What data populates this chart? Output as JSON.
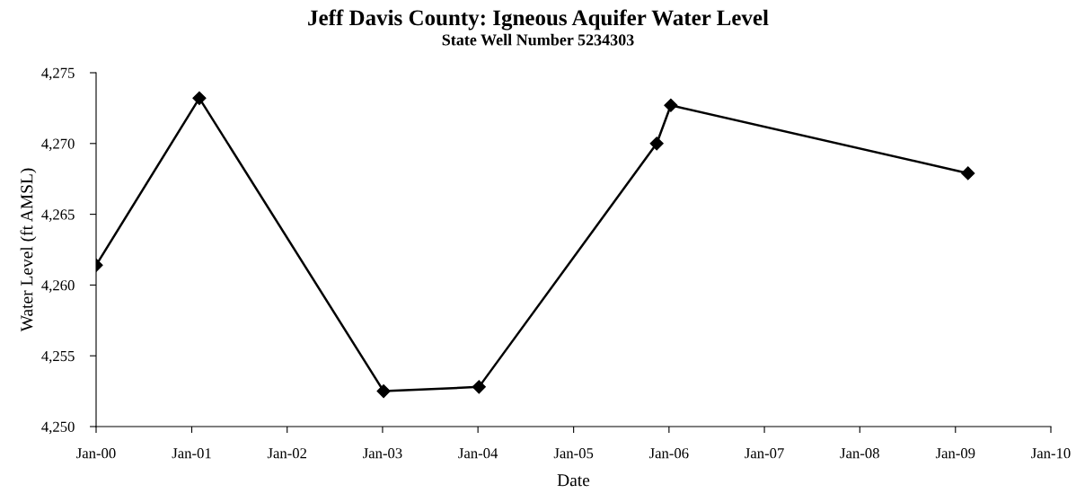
{
  "chart_data": {
    "type": "line",
    "title": "Jeff Davis County: Igneous Aquifer Water Level",
    "subtitle": "State Well Number 5234303",
    "xlabel": "Date",
    "ylabel": "Water Level (ft AMSL)",
    "x": [
      "2000-01-01",
      "2001-01-30",
      "2003-01-05",
      "2004-01-05",
      "2005-11-15",
      "2006-01-08",
      "2009-02-18"
    ],
    "series": [
      {
        "color": "#000000",
        "values": [
          4261.4,
          4273.2,
          4252.5,
          4252.8,
          4270.0,
          4272.7,
          4267.9
        ]
      }
    ],
    "marker": "diamond",
    "line_style": "solid",
    "grid": false,
    "legend": false,
    "xlim": [
      "2000-01-01",
      "2010-01-01"
    ],
    "xticks": [
      {
        "value": "2000-01-01",
        "label": "Jan-00"
      },
      {
        "value": "2001-01-01",
        "label": "Jan-01"
      },
      {
        "value": "2002-01-01",
        "label": "Jan-02"
      },
      {
        "value": "2003-01-01",
        "label": "Jan-03"
      },
      {
        "value": "2004-01-01",
        "label": "Jan-04"
      },
      {
        "value": "2005-01-01",
        "label": "Jan-05"
      },
      {
        "value": "2006-01-01",
        "label": "Jan-06"
      },
      {
        "value": "2007-01-01",
        "label": "Jan-07"
      },
      {
        "value": "2008-01-01",
        "label": "Jan-08"
      },
      {
        "value": "2009-01-01",
        "label": "Jan-09"
      },
      {
        "value": "2010-01-01",
        "label": "Jan-10"
      }
    ],
    "ylim": [
      4250,
      4275
    ],
    "yticks": [
      {
        "value": 4250,
        "label": "4,250"
      },
      {
        "value": 4255,
        "label": "4,255"
      },
      {
        "value": 4260,
        "label": "4,260"
      },
      {
        "value": 4265,
        "label": "4,265"
      },
      {
        "value": 4270,
        "label": "4,270"
      },
      {
        "value": 4275,
        "label": "4,275"
      }
    ]
  }
}
